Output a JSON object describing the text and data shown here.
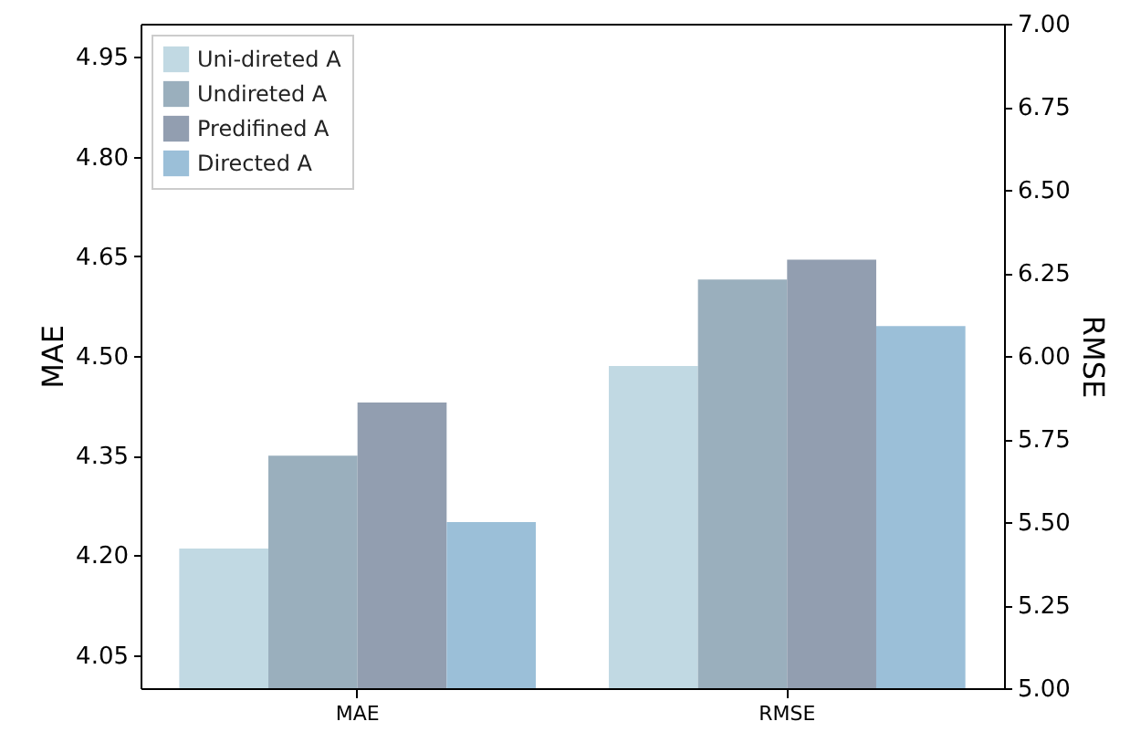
{
  "chart_data": {
    "type": "bar",
    "categories": [
      "MAE",
      "RMSE"
    ],
    "ylabel": "MAE",
    "y2label": "RMSE",
    "ylim": [
      4.0,
      5.0
    ],
    "yticks": [
      4.05,
      {
        "value": 4.2,
        "label": "4.20"
      },
      4.35,
      {
        "value": 4.5,
        "label": "4.50"
      },
      4.65,
      {
        "value": 4.8,
        "label": "4.80"
      },
      4.95
    ],
    "y2lim": [
      5.0,
      7.0
    ],
    "y2ticks": [
      {
        "value": 5,
        "label": "5.00"
      },
      5.25,
      {
        "value": 5.5,
        "label": "5.50"
      },
      5.75,
      {
        "value": 6,
        "label": "6.00"
      },
      6.25,
      {
        "value": 6.5,
        "label": "6.50"
      },
      6.75,
      {
        "value": 7,
        "label": "7.00"
      }
    ],
    "grid": false,
    "legend": "top left",
    "series": [
      {
        "name": "Uni-direted A",
        "color": "#c1d9e3",
        "values": [
          4.21,
          null
        ]
      },
      {
        "name": "Undireted A",
        "color": "#9aafbd",
        "values": [
          4.35,
          null
        ]
      },
      {
        "name": "Predifined A",
        "color": "#929eb0",
        "values": [
          4.43,
          null
        ]
      },
      {
        "name": "Directed A",
        "color": "#9bbfd8",
        "values": [
          4.25,
          null
        ]
      },
      {
        "color": "#c1d9e3",
        "axis": "y2",
        "values": [
          null,
          5.97
        ]
      },
      {
        "color": "#9aafbd",
        "axis": "y2",
        "values": [
          null,
          6.23
        ]
      },
      {
        "color": "#929eb0",
        "axis": "y2",
        "values": [
          null,
          6.29
        ]
      },
      {
        "color": "#9bbfd8",
        "axis": "y2",
        "values": [
          null,
          6.09
        ]
      }
    ]
  }
}
